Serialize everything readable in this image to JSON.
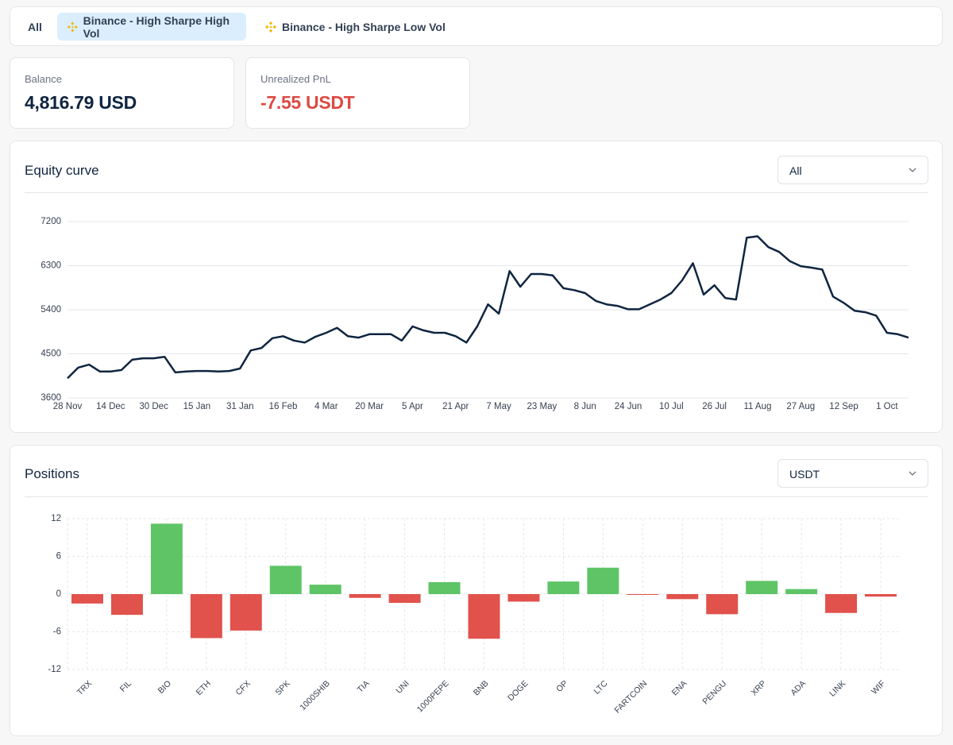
{
  "tabs": [
    "All",
    "Binance - High Sharpe High Vol",
    "Binance - High Sharpe Low Vol"
  ],
  "active_tab": 1,
  "cards": [
    {
      "label": "Balance",
      "value": "4,816.79 USD"
    },
    {
      "label": "Unrealized PnL",
      "value": "-7.55 USDT"
    }
  ],
  "chart_data": [
    {
      "type": "line",
      "title": "Equity curve",
      "filter": "All",
      "categories": [
        "28 Nov",
        null,
        null,
        null,
        "14 Dec",
        null,
        null,
        null,
        "30 Dec",
        null,
        null,
        null,
        "15 Jan",
        null,
        null,
        null,
        "31 Jan",
        null,
        null,
        null,
        "16 Feb",
        null,
        null,
        null,
        "4 Mar",
        null,
        null,
        null,
        "20 Mar",
        null,
        null,
        null,
        "5 Apr",
        null,
        null,
        null,
        "21 Apr",
        null,
        null,
        null,
        "7 May",
        null,
        null,
        null,
        "23 May",
        null,
        null,
        null,
        "8 Jun",
        null,
        null,
        null,
        "24 Jun",
        null,
        null,
        null,
        "10 Jul",
        null,
        null,
        null,
        "26 Jul",
        null,
        null,
        null,
        "11 Aug",
        null,
        null,
        null,
        "27 Aug",
        null,
        null,
        null,
        "12 Sep",
        null,
        null,
        null,
        "1 Oct",
        null,
        null
      ],
      "values": [
        4000,
        4220,
        4280,
        4140,
        4140,
        4170,
        4380,
        4410,
        4410,
        4440,
        4120,
        4140,
        4150,
        4150,
        4140,
        4150,
        4200,
        4570,
        4620,
        4820,
        4860,
        4770,
        4730,
        4850,
        4930,
        5030,
        4860,
        4830,
        4900,
        4900,
        4900,
        4770,
        5060,
        4980,
        4930,
        4930,
        4860,
        4730,
        5060,
        5510,
        5320,
        6190,
        5870,
        6130,
        6130,
        6100,
        5840,
        5800,
        5740,
        5580,
        5510,
        5480,
        5410,
        5410,
        5510,
        5610,
        5740,
        6000,
        6350,
        5710,
        5900,
        5640,
        5610,
        6870,
        6900,
        6680,
        6580,
        6390,
        6290,
        6260,
        6220,
        5670,
        5540,
        5380,
        5350,
        5280,
        4930,
        4900,
        4830
      ],
      "ylim": [
        3600,
        7200
      ],
      "yticks": [
        3600,
        4500,
        5400,
        6300,
        7200
      ],
      "color": "#0f2540",
      "grid": true
    },
    {
      "type": "bar",
      "title": "Positions",
      "filter": "USDT",
      "categories": [
        "TRX",
        "FIL",
        "BIO",
        "ETH",
        "CFX",
        "SPK",
        "1000SHIB",
        "TIA",
        "UNI",
        "1000PEPE",
        "BNB",
        "DOGE",
        "OP",
        "LTC",
        "FARTCOIN",
        "ENA",
        "PENGU",
        "XRP",
        "ADA",
        "LINK",
        "WIF"
      ],
      "values": [
        -1.5,
        -3.3,
        11.2,
        -7.0,
        -5.8,
        4.5,
        1.5,
        -0.6,
        -1.4,
        1.9,
        -7.1,
        -1.2,
        2.0,
        4.2,
        -0.1,
        -0.8,
        -3.2,
        2.1,
        0.8,
        -3.0,
        -0.4
      ],
      "ylim": [
        -12,
        12
      ],
      "yticks": [
        12,
        6,
        0,
        -6,
        -12
      ],
      "positive_color": "#5ec466",
      "negative_color": "#e0524b",
      "grid": true
    }
  ]
}
